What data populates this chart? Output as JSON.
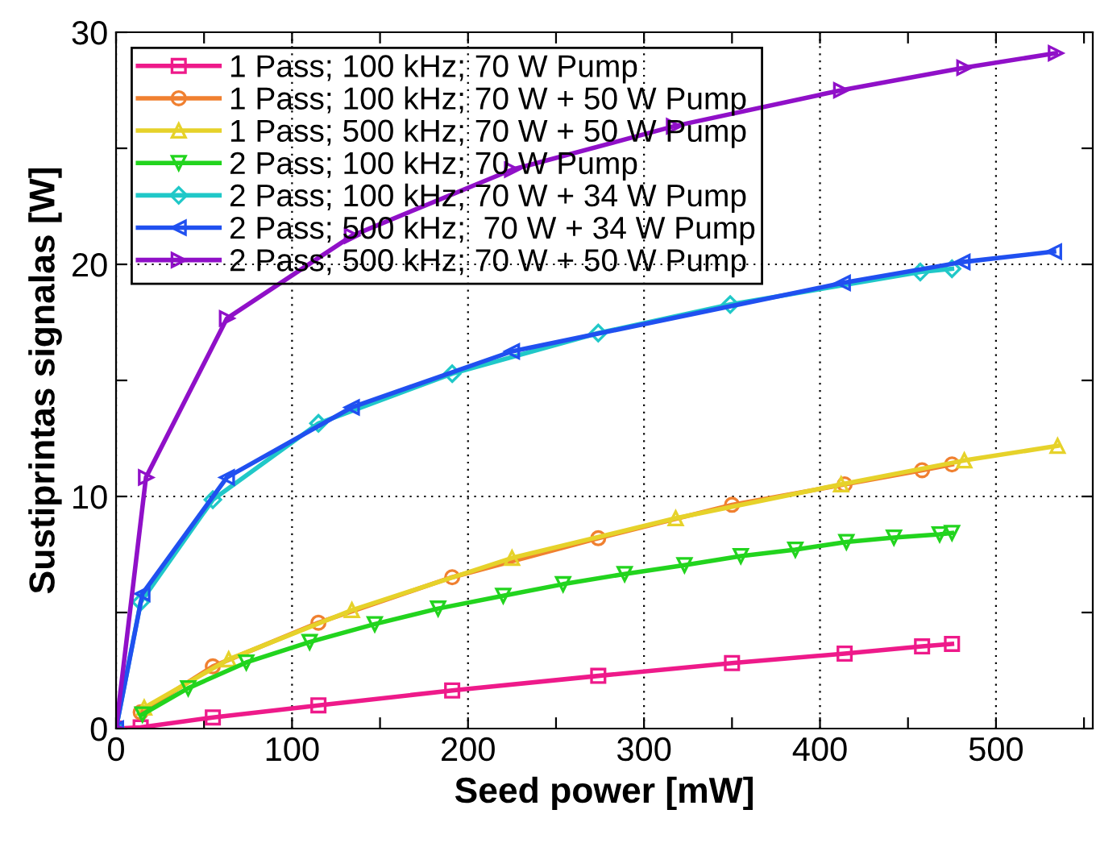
{
  "chart_data": {
    "type": "line",
    "xlabel": "Seed power [mW]",
    "ylabel": "Sustiprintas signalas [W]",
    "xlim": [
      0,
      555
    ],
    "ylim": [
      0,
      30
    ],
    "xticks": [
      0,
      {
        "value": 50,
        "label": null
      },
      100,
      {
        "value": 150,
        "label": null
      },
      200,
      {
        "value": 250,
        "label": null
      },
      300,
      {
        "value": 350,
        "label": null
      },
      400,
      {
        "value": 450,
        "label": null
      },
      500,
      {
        "value": 550,
        "label": null
      }
    ],
    "yticks": [
      0,
      {
        "value": 5,
        "label": null
      },
      10,
      {
        "value": 15,
        "label": null
      },
      20,
      {
        "value": 25,
        "label": null
      },
      30
    ],
    "grid": true,
    "legend": "top left",
    "line_style": "solid",
    "series": [
      {
        "name": "1 Pass; 100 kHz; 70 W Pump",
        "color": "#ee1a8a",
        "marker": "square",
        "x": [
          0,
          14,
          55,
          115,
          191,
          274,
          350,
          414,
          458,
          475
        ],
        "values": [
          0,
          0.05,
          0.48,
          1.0,
          1.64,
          2.27,
          2.82,
          3.23,
          3.54,
          3.65
        ]
      },
      {
        "name": "1 Pass; 100 kHz; 70 W + 50 W Pump",
        "color": "#f08030",
        "marker": "circle",
        "x": [
          14,
          55,
          115,
          191,
          274,
          350,
          414,
          458,
          475
        ],
        "values": [
          0.7,
          2.68,
          4.56,
          6.52,
          8.2,
          9.64,
          10.52,
          11.13,
          11.38
        ]
      },
      {
        "name": "1 Pass; 500 kHz; 70 W + 50 W Pump",
        "color": "#e6d22a",
        "marker": "triangle",
        "x": [
          16,
          64,
          134,
          225,
          318,
          412,
          482,
          535
        ],
        "values": [
          0.9,
          2.98,
          5.1,
          7.35,
          9.06,
          10.52,
          11.55,
          12.18
        ]
      },
      {
        "name": "2 Pass; 100 kHz; 70 W Pump",
        "color": "#22d41e",
        "marker": "triangle-down",
        "x": [
          15,
          41,
          74,
          110,
          147,
          183,
          220,
          254,
          289,
          323,
          355,
          386,
          415,
          442,
          468,
          475
        ],
        "values": [
          0.61,
          1.74,
          2.85,
          3.73,
          4.5,
          5.17,
          5.72,
          6.22,
          6.66,
          7.04,
          7.43,
          7.71,
          8.04,
          8.23,
          8.37,
          8.43
        ]
      },
      {
        "name": "2 Pass; 100 kHz; 70 W + 34 W Pump",
        "color": "#20c8c8",
        "marker": "diamond",
        "x": [
          0,
          14,
          55,
          115,
          191,
          274,
          349,
          457,
          475
        ],
        "values": [
          0,
          5.45,
          9.86,
          13.15,
          15.29,
          17.04,
          18.27,
          19.67,
          19.81
        ]
      },
      {
        "name": "2 Pass; 500 kHz;  70 W + 34 W Pump",
        "color": "#2050f0",
        "marker": "triangle-left",
        "x": [
          0,
          15,
          63,
          134,
          225,
          413,
          481,
          533
        ],
        "values": [
          0,
          5.81,
          10.82,
          13.84,
          16.25,
          19.2,
          20.1,
          20.55
        ]
      },
      {
        "name": "2 Pass; 500 kHz; 70 W + 50 W Pump",
        "color": "#9010c8",
        "marker": "triangle-right",
        "x": [
          0,
          17,
          63,
          134,
          225,
          317,
          412,
          482,
          534
        ],
        "values": [
          0,
          10.82,
          17.67,
          21.23,
          24.08,
          25.95,
          27.5,
          28.47,
          29.1
        ]
      }
    ]
  }
}
